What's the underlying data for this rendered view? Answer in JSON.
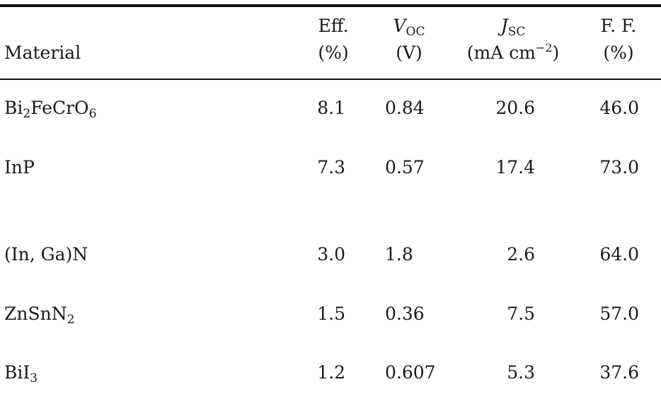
{
  "table": {
    "headers": {
      "material": "Material",
      "eff": {
        "line1": "Eff.",
        "line2": "(%)"
      },
      "voc": {
        "symbol": "V",
        "sub": "OC",
        "line2": "(V)"
      },
      "jsc": {
        "symbol": "J",
        "sub": "SC",
        "line2_pre": "(mA cm",
        "line2_sup": "−2",
        "line2_post": ")"
      },
      "ff": {
        "line1": "F. F.",
        "line2": "(%)"
      }
    },
    "rows": [
      {
        "material": {
          "parts": [
            "Bi",
            "2",
            "FeCrO",
            "6"
          ]
        },
        "eff": "8.1",
        "voc": "0.84",
        "jsc": "20.6",
        "ff": "46.0"
      },
      {
        "material": {
          "parts": [
            "InP"
          ]
        },
        "eff": "7.3",
        "voc": "0.57",
        "jsc": "17.4",
        "ff": "73.0"
      },
      {
        "material": {
          "parts": [
            "(In, Ga)N"
          ]
        },
        "eff": "3.0",
        "voc": "1.8",
        "jsc": "2.6",
        "ff": "64.0"
      },
      {
        "material": {
          "parts": [
            "ZnSnN",
            "2"
          ]
        },
        "eff": "1.5",
        "voc": "0.36",
        "jsc": "7.5",
        "ff": "57.0"
      },
      {
        "material": {
          "parts": [
            "BiI",
            "3"
          ]
        },
        "eff": "1.2",
        "voc": "0.607",
        "jsc": "5.3",
        "ff": "37.6"
      }
    ]
  }
}
